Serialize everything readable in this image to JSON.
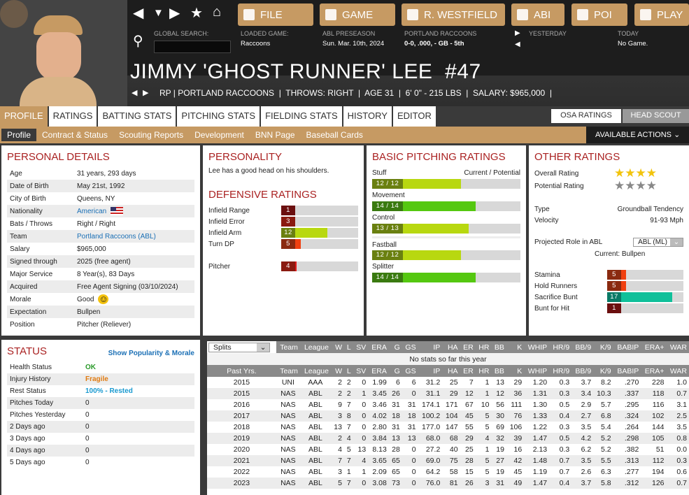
{
  "nav": {
    "icons": [
      "back-arrow-icon",
      "dropdown-arrow-icon",
      "forward-arrow-icon",
      "star-icon",
      "home-icon"
    ]
  },
  "toolbar": [
    {
      "label": "FILE",
      "icon": "file-icon"
    },
    {
      "label": "GAME",
      "icon": "globe-icon"
    },
    {
      "label": "R. WESTFIELD",
      "icon": "home-icon"
    },
    {
      "label": "ABI",
      "icon": "team-logo-icon"
    },
    {
      "label": "POI",
      "icon": "raccoon-logo-icon"
    },
    {
      "label": "PLAY",
      "icon": "baseball-icon"
    }
  ],
  "info": {
    "search_label": "GLOBAL SEARCH:",
    "search_value": "",
    "loaded_label": "LOADED GAME:",
    "loaded_value": "Raccoons",
    "season_label": "ABL PRESEASON",
    "season_value": "Sun. Mar. 10th, 2024",
    "team_label": "PORTLAND RACCOONS",
    "team_value": "0-0, .000, - GB - 5th",
    "yesterday_label": "YESTERDAY",
    "today_label": "TODAY",
    "today_value": "No Game."
  },
  "player": {
    "name": "JIMMY 'GHOST RUNNER' LEE  #47",
    "subtitle": "RP | PORTLAND RACCOONS  |  THROWS: RIGHT  |  AGE 31  |  6' 0\" - 215 LBS  |  SALARY: $965,000  |"
  },
  "tabs": [
    "PROFILE",
    "RATINGS",
    "BATTING STATS",
    "PITCHING STATS",
    "FIELDING STATS",
    "HISTORY",
    "EDITOR"
  ],
  "subtabs": [
    "Profile",
    "Contract & Status",
    "Scouting Reports",
    "Development",
    "BNN Page",
    "Baseball Cards"
  ],
  "rating_toggle": [
    "OSA RATINGS",
    "HEAD SCOUT"
  ],
  "available_actions": "AVAILABLE ACTIONS",
  "personal": {
    "title": "PERSONAL DETAILS",
    "rows": [
      [
        "Age",
        "31 years, 293 days"
      ],
      [
        "Date of Birth",
        "May 21st, 1992"
      ],
      [
        "City of Birth",
        "Queens, NY"
      ],
      [
        "Nationality",
        "American"
      ],
      [
        "Bats / Throws",
        "Right / Right"
      ],
      [
        "Team",
        "Portland Raccoons (ABL)"
      ],
      [
        "Salary",
        "$965,000"
      ],
      [
        "Signed through",
        "2025 (free agent)"
      ],
      [
        "Major Service",
        "8 Year(s), 83 Days"
      ],
      [
        "Acquired",
        "Free Agent Signing (03/10/2024)"
      ],
      [
        "Morale",
        "Good"
      ],
      [
        "Expectation",
        "Bullpen"
      ],
      [
        "Position",
        "Pitcher (Reliever)"
      ]
    ]
  },
  "personality": {
    "title": "PERSONALITY",
    "text": "Lee has a good head on his shoulders."
  },
  "defensive": {
    "title": "DEFENSIVE RATINGS",
    "rows": [
      {
        "label": "Infield Range",
        "value": 1
      },
      {
        "label": "Infield Error",
        "value": 3
      },
      {
        "label": "Infield Arm",
        "value": 12
      },
      {
        "label": "Turn DP",
        "value": 5
      },
      {
        "label": "Pitcher",
        "value": 4
      }
    ]
  },
  "pitching": {
    "title": "BASIC PITCHING RATINGS",
    "header": "Current / Potential",
    "rows": [
      {
        "label": "Stuff",
        "text": "12 / 12",
        "value": 12
      },
      {
        "label": "Movement",
        "text": "14 / 14",
        "value": 14
      },
      {
        "label": "Control",
        "text": "13 / 13",
        "value": 13
      },
      {
        "label": "Fastball",
        "text": "12 / 12",
        "value": 12
      },
      {
        "label": "Splitter",
        "text": "14 / 14",
        "value": 14
      }
    ]
  },
  "other": {
    "title": "OTHER RATINGS",
    "overall_label": "Overall Rating",
    "overall_stars": 4,
    "potential_label": "Potential Rating",
    "potential_stars": 4,
    "type_label": "Type",
    "type_value": "Groundball Tendency",
    "velocity_label": "Velocity",
    "velocity_value": "91-93 Mph",
    "role_label": "Projected Role in ABL",
    "role_select": "ABL (ML)",
    "current_label": "Current:",
    "current_value": "Bullpen",
    "rows": [
      {
        "label": "Stamina",
        "value": 5
      },
      {
        "label": "Hold Runners",
        "value": 5
      },
      {
        "label": "Sacrifice Bunt",
        "value": 17
      },
      {
        "label": "Bunt for Hit",
        "value": 1
      }
    ]
  },
  "status": {
    "title": "STATUS",
    "link": "Show Popularity & Morale",
    "rows": [
      [
        "Health Status",
        "OK",
        "#2a9a2a"
      ],
      [
        "Injury History",
        "Fragile",
        "#e07a10"
      ],
      [
        "Rest Status",
        "100% - Rested",
        "#1a9ad0"
      ],
      [
        "Pitches Today",
        "0",
        ""
      ],
      [
        "Pitches Yesterday",
        "0",
        ""
      ],
      [
        "2 Days ago",
        "0",
        ""
      ],
      [
        "3 Days ago",
        "0",
        ""
      ],
      [
        "4 Days ago",
        "0",
        ""
      ],
      [
        "5 Days ago",
        "0",
        ""
      ]
    ]
  },
  "stats": {
    "splits": "Splits",
    "columns": [
      "Team",
      "League",
      "W",
      "L",
      "SV",
      "ERA",
      "G",
      "GS",
      "IP",
      "HA",
      "ER",
      "HR",
      "BB",
      "K",
      "WHIP",
      "HR/9",
      "BB/9",
      "K/9",
      "BABIP",
      "ERA+",
      "WAR"
    ],
    "no_stats": "No stats so far this year",
    "past_label": "Past Yrs.",
    "rows": [
      [
        "2015",
        "UNI",
        "AAA",
        "2",
        "2",
        "0",
        "1.99",
        "6",
        "6",
        "31.2",
        "25",
        "7",
        "1",
        "13",
        "29",
        "1.20",
        "0.3",
        "3.7",
        "8.2",
        ".270",
        "228",
        "1.0"
      ],
      [
        "2015",
        "NAS",
        "ABL",
        "2",
        "2",
        "1",
        "3.45",
        "26",
        "0",
        "31.1",
        "29",
        "12",
        "1",
        "12",
        "36",
        "1.31",
        "0.3",
        "3.4",
        "10.3",
        ".337",
        "118",
        "0.7"
      ],
      [
        "2016",
        "NAS",
        "ABL",
        "9",
        "7",
        "0",
        "3.46",
        "31",
        "31",
        "174.1",
        "171",
        "67",
        "10",
        "56",
        "111",
        "1.30",
        "0.5",
        "2.9",
        "5.7",
        ".295",
        "116",
        "3.1"
      ],
      [
        "2017",
        "NAS",
        "ABL",
        "3",
        "8",
        "0",
        "4.02",
        "18",
        "18",
        "100.2",
        "104",
        "45",
        "5",
        "30",
        "76",
        "1.33",
        "0.4",
        "2.7",
        "6.8",
        ".324",
        "102",
        "2.5"
      ],
      [
        "2018",
        "NAS",
        "ABL",
        "13",
        "7",
        "0",
        "2.80",
        "31",
        "31",
        "177.0",
        "147",
        "55",
        "5",
        "69",
        "106",
        "1.22",
        "0.3",
        "3.5",
        "5.4",
        ".264",
        "144",
        "3.5"
      ],
      [
        "2019",
        "NAS",
        "ABL",
        "2",
        "4",
        "0",
        "3.84",
        "13",
        "13",
        "68.0",
        "68",
        "29",
        "4",
        "32",
        "39",
        "1.47",
        "0.5",
        "4.2",
        "5.2",
        ".298",
        "105",
        "0.8"
      ],
      [
        "2020",
        "NAS",
        "ABL",
        "4",
        "5",
        "13",
        "8.13",
        "28",
        "0",
        "27.2",
        "40",
        "25",
        "1",
        "19",
        "16",
        "2.13",
        "0.3",
        "6.2",
        "5.2",
        ".382",
        "51",
        "0.0"
      ],
      [
        "2021",
        "NAS",
        "ABL",
        "7",
        "7",
        "4",
        "3.65",
        "65",
        "0",
        "69.0",
        "75",
        "28",
        "5",
        "27",
        "42",
        "1.48",
        "0.7",
        "3.5",
        "5.5",
        ".313",
        "112",
        "0.3"
      ],
      [
        "2022",
        "NAS",
        "ABL",
        "3",
        "1",
        "1",
        "2.09",
        "65",
        "0",
        "64.2",
        "58",
        "15",
        "5",
        "19",
        "45",
        "1.19",
        "0.7",
        "2.6",
        "6.3",
        ".277",
        "194",
        "0.6"
      ],
      [
        "2023",
        "NAS",
        "ABL",
        "5",
        "7",
        "0",
        "3.08",
        "73",
        "0",
        "76.0",
        "81",
        "26",
        "3",
        "31",
        "49",
        "1.47",
        "0.4",
        "3.7",
        "5.8",
        ".312",
        "126",
        "0.7"
      ]
    ]
  },
  "colors": {
    "accent": "#c69a63",
    "title_red": "#a22222",
    "dark": "#1d1d1d"
  }
}
